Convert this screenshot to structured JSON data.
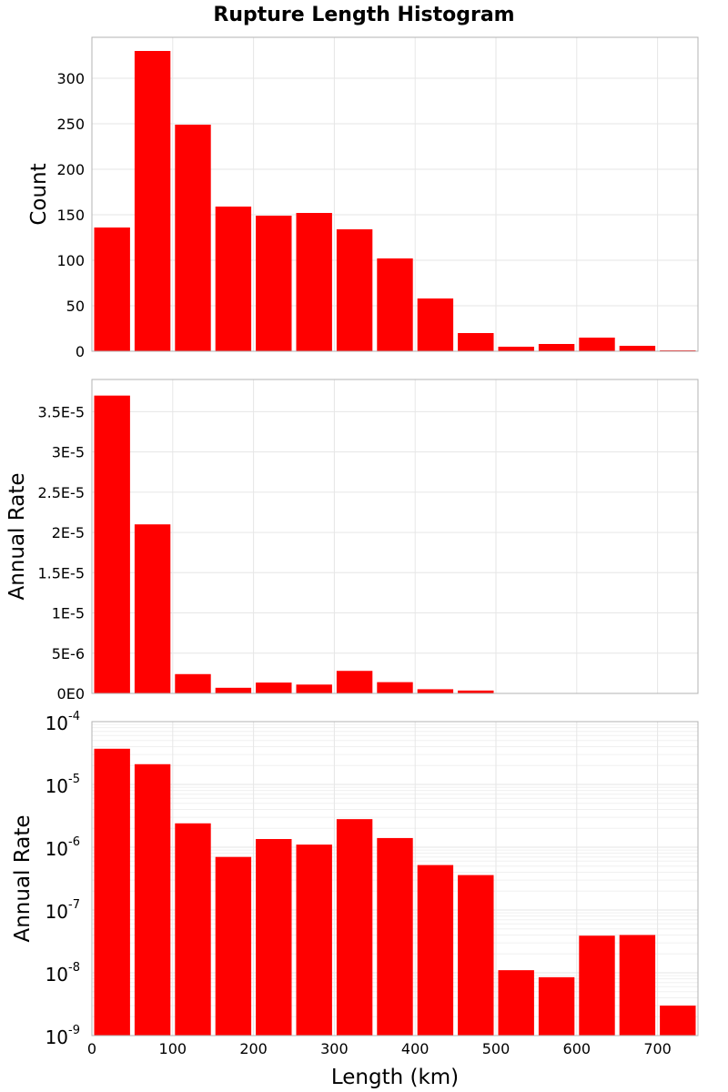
{
  "figure": {
    "title": "Rupture Length Histogram",
    "xlabel": "Length (km)",
    "bar_color": "#FF0000",
    "grid_color": "#e6e6e6"
  },
  "chart_data": [
    {
      "type": "bar",
      "title": "Rupture Length Histogram",
      "ylabel": "Count",
      "xlabel": "",
      "x_bin_centers": [
        25,
        75,
        125,
        175,
        225,
        275,
        325,
        375,
        425,
        475,
        525,
        575,
        625,
        675,
        725
      ],
      "bin_width": 50,
      "values": [
        136,
        330,
        249,
        159,
        149,
        152,
        134,
        102,
        58,
        20,
        5,
        8,
        15,
        6,
        1
      ],
      "xlim": [
        0,
        750
      ],
      "ylim": [
        0,
        345
      ],
      "yticks": [
        0,
        50,
        100,
        150,
        200,
        250,
        300
      ],
      "ytick_labels": [
        "0",
        "50",
        "100",
        "150",
        "200",
        "250",
        "300"
      ],
      "grid": true,
      "legend": "none"
    },
    {
      "type": "bar",
      "ylabel": "Annual Rate",
      "xlabel": "",
      "x_bin_centers": [
        25,
        75,
        125,
        175,
        225,
        275,
        325,
        375,
        425,
        475,
        525,
        575,
        625,
        675,
        725
      ],
      "bin_width": 50,
      "values": [
        3.7e-05,
        2.1e-05,
        2.4e-06,
        7e-07,
        1.35e-06,
        1.1e-06,
        2.8e-06,
        1.4e-06,
        5.2e-07,
        3.6e-07,
        1.1e-08,
        8.5e-09,
        3.9e-08,
        4e-08,
        3e-09
      ],
      "xlim": [
        0,
        750
      ],
      "ylim": [
        0,
        3.9e-05
      ],
      "yticks": [
        0,
        5e-06,
        1e-05,
        1.5e-05,
        2e-05,
        2.5e-05,
        3e-05,
        3.5e-05
      ],
      "ytick_labels": [
        "0E0",
        "5E-6",
        "1E-5",
        "1.5E-5",
        "2E-5",
        "2.5E-5",
        "3E-5",
        "3.5E-5"
      ],
      "grid": true,
      "legend": "none"
    },
    {
      "type": "bar",
      "ylabel": "Annual Rate",
      "xlabel": "Length (km)",
      "yscale": "log",
      "x_bin_centers": [
        25,
        75,
        125,
        175,
        225,
        275,
        325,
        375,
        425,
        475,
        525,
        575,
        625,
        675,
        725
      ],
      "bin_width": 50,
      "values": [
        3.7e-05,
        2.1e-05,
        2.4e-06,
        7e-07,
        1.35e-06,
        1.1e-06,
        2.8e-06,
        1.4e-06,
        5.2e-07,
        3.6e-07,
        1.1e-08,
        8.5e-09,
        3.9e-08,
        4e-08,
        3e-09
      ],
      "xlim": [
        0,
        750
      ],
      "ylim": [
        1e-09,
        0.0001
      ],
      "yticks": [
        1e-09,
        1e-08,
        1e-07,
        1e-06,
        1e-05,
        0.0001
      ],
      "ytick_base": "10",
      "ytick_exponents": [
        "-9",
        "-8",
        "-7",
        "-6",
        "-5",
        "-4"
      ],
      "xticks": [
        0,
        100,
        200,
        300,
        400,
        500,
        600,
        700
      ],
      "xtick_labels": [
        "0",
        "100",
        "200",
        "300",
        "400",
        "500",
        "600",
        "700"
      ],
      "grid": true,
      "legend": "none"
    }
  ]
}
